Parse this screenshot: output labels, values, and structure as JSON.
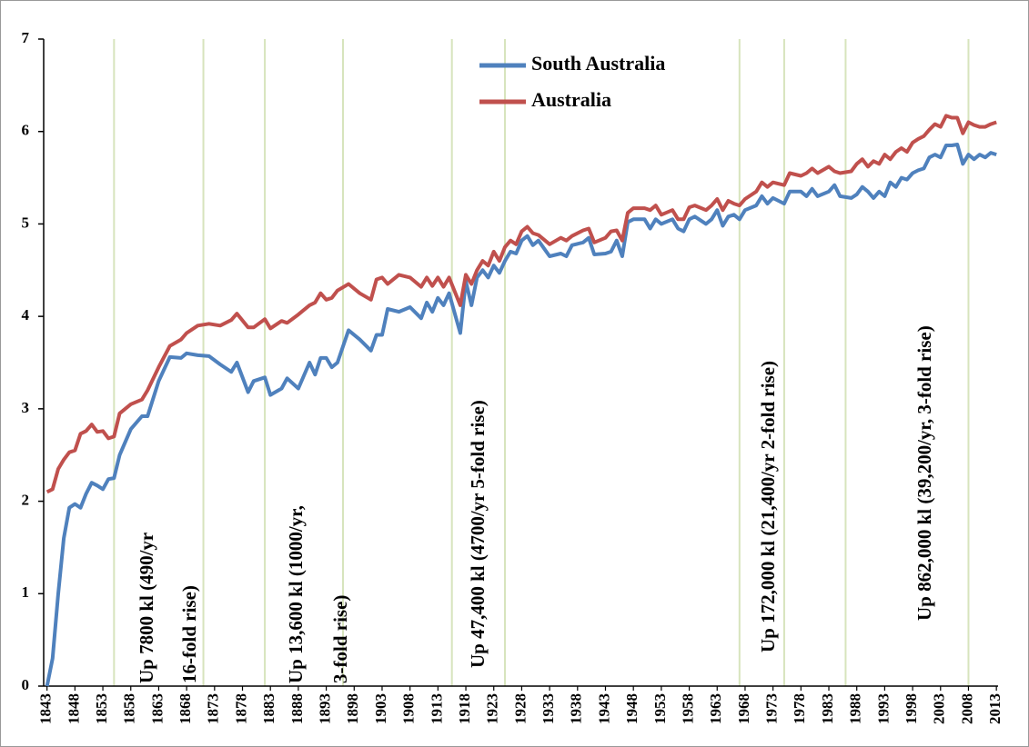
{
  "chart_data": {
    "type": "line",
    "x": [
      1843,
      1844,
      1845,
      1846,
      1847,
      1848,
      1849,
      1850,
      1851,
      1852,
      1853,
      1854,
      1855,
      1856,
      1858,
      1860,
      1861,
      1863,
      1865,
      1867,
      1868,
      1870,
      1872,
      1874,
      1876,
      1877,
      1879,
      1880,
      1882,
      1883,
      1885,
      1886,
      1888,
      1890,
      1891,
      1892,
      1893,
      1894,
      1895,
      1897,
      1899,
      1901,
      1902,
      1903,
      1904,
      1906,
      1908,
      1910,
      1911,
      1912,
      1913,
      1914,
      1915,
      1917,
      1918,
      1919,
      1920,
      1921,
      1922,
      1923,
      1924,
      1925,
      1926,
      1927,
      1928,
      1929,
      1930,
      1931,
      1933,
      1935,
      1936,
      1937,
      1939,
      1940,
      1941,
      1943,
      1944,
      1945,
      1946,
      1947,
      1948,
      1950,
      1951,
      1952,
      1953,
      1955,
      1956,
      1957,
      1958,
      1959,
      1961,
      1962,
      1963,
      1964,
      1965,
      1966,
      1967,
      1968,
      1970,
      1971,
      1972,
      1973,
      1975,
      1976,
      1978,
      1979,
      1980,
      1981,
      1983,
      1984,
      1985,
      1987,
      1988,
      1989,
      1990,
      1991,
      1992,
      1993,
      1994,
      1995,
      1996,
      1997,
      1998,
      1999,
      2000,
      2001,
      2002,
      2003,
      2004,
      2005,
      2006,
      2007,
      2008,
      2009,
      2010,
      2011,
      2012,
      2013
    ],
    "series": [
      {
        "name": "South Australia",
        "color": "#4f81bd",
        "values": [
          0,
          0.3,
          1.0,
          1.6,
          1.93,
          1.97,
          1.93,
          2.08,
          2.2,
          2.17,
          2.13,
          2.24,
          2.25,
          2.5,
          2.78,
          2.92,
          2.92,
          3.3,
          3.56,
          3.55,
          3.6,
          3.58,
          3.57,
          3.48,
          3.4,
          3.5,
          3.18,
          3.3,
          3.34,
          3.15,
          3.22,
          3.33,
          3.22,
          3.5,
          3.37,
          3.55,
          3.55,
          3.45,
          3.5,
          3.85,
          3.75,
          3.63,
          3.8,
          3.8,
          4.08,
          4.05,
          4.1,
          3.98,
          4.15,
          4.05,
          4.2,
          4.12,
          4.25,
          3.82,
          4.38,
          4.12,
          4.42,
          4.5,
          4.42,
          4.55,
          4.47,
          4.6,
          4.7,
          4.68,
          4.82,
          4.87,
          4.77,
          4.82,
          4.65,
          4.68,
          4.65,
          4.77,
          4.8,
          4.85,
          4.67,
          4.68,
          4.7,
          4.82,
          4.65,
          5.02,
          5.05,
          5.05,
          4.95,
          5.05,
          5.0,
          5.05,
          4.95,
          4.92,
          5.05,
          5.08,
          5.0,
          5.05,
          5.15,
          4.98,
          5.08,
          5.1,
          5.05,
          5.15,
          5.2,
          5.3,
          5.22,
          5.28,
          5.22,
          5.35,
          5.35,
          5.3,
          5.38,
          5.3,
          5.35,
          5.42,
          5.3,
          5.28,
          5.32,
          5.4,
          5.35,
          5.28,
          5.35,
          5.3,
          5.45,
          5.4,
          5.5,
          5.48,
          5.55,
          5.58,
          5.6,
          5.72,
          5.75,
          5.72,
          5.85,
          5.85,
          5.86,
          5.65,
          5.75,
          5.7,
          5.75,
          5.72,
          5.77,
          5.75
        ]
      },
      {
        "name": "Australia",
        "color": "#c0504d",
        "values": [
          2.1,
          2.13,
          2.35,
          2.45,
          2.53,
          2.55,
          2.73,
          2.76,
          2.83,
          2.75,
          2.76,
          2.68,
          2.7,
          2.95,
          3.05,
          3.1,
          3.2,
          3.45,
          3.68,
          3.75,
          3.82,
          3.9,
          3.92,
          3.9,
          3.96,
          4.03,
          3.88,
          3.88,
          3.97,
          3.87,
          3.95,
          3.93,
          4.02,
          4.12,
          4.15,
          4.25,
          4.18,
          4.2,
          4.28,
          4.35,
          4.25,
          4.18,
          4.4,
          4.42,
          4.35,
          4.45,
          4.42,
          4.32,
          4.42,
          4.33,
          4.42,
          4.32,
          4.42,
          4.12,
          4.45,
          4.35,
          4.5,
          4.6,
          4.55,
          4.7,
          4.6,
          4.75,
          4.82,
          4.78,
          4.92,
          4.97,
          4.9,
          4.88,
          4.78,
          4.85,
          4.82,
          4.87,
          4.93,
          4.95,
          4.8,
          4.85,
          4.92,
          4.93,
          4.82,
          5.12,
          5.17,
          5.17,
          5.15,
          5.2,
          5.1,
          5.15,
          5.05,
          5.05,
          5.18,
          5.2,
          5.15,
          5.2,
          5.27,
          5.15,
          5.25,
          5.22,
          5.2,
          5.27,
          5.35,
          5.45,
          5.4,
          5.45,
          5.42,
          5.55,
          5.52,
          5.55,
          5.6,
          5.55,
          5.62,
          5.57,
          5.55,
          5.57,
          5.65,
          5.7,
          5.62,
          5.68,
          5.65,
          5.75,
          5.7,
          5.78,
          5.82,
          5.78,
          5.88,
          5.92,
          5.95,
          6.02,
          6.08,
          6.05,
          6.17,
          6.15,
          6.15,
          5.98,
          6.1,
          6.07,
          6.05,
          6.05,
          6.08,
          6.1
        ]
      }
    ],
    "xlim": [
      1842.4,
      2013.3
    ],
    "xticks": [
      1843,
      1848,
      1853,
      1858,
      1863,
      1868,
      1873,
      1878,
      1883,
      1888,
      1893,
      1898,
      1903,
      1908,
      1913,
      1918,
      1923,
      1928,
      1933,
      1938,
      1943,
      1948,
      1953,
      1958,
      1963,
      1968,
      1973,
      1978,
      1983,
      1988,
      1993,
      1998,
      2003,
      2008,
      2013
    ],
    "ylim": [
      0,
      7
    ],
    "yticks": [
      0,
      1,
      2,
      3,
      4,
      5,
      6,
      7
    ],
    "vlines": [
      1855,
      1871,
      1882,
      1896,
      1915.5,
      1925,
      1967,
      1975,
      1986,
      2008
    ],
    "vline_color": "#d7e4bd",
    "annotations": [
      [
        "Up 7800 kl (490/yr",
        "16-fold rise)"
      ],
      [
        "Up 13,600 kl (1000/yr,",
        "3-fold rise)"
      ],
      [
        "Up 47,400 kl (4700/yr 5-fold rise)"
      ],
      [
        "Up 172,000 kl (21,400/yr 2-fold rise)"
      ],
      [
        "Up 862,000 kl (39,200/yr, 3-fold rise)"
      ]
    ]
  }
}
